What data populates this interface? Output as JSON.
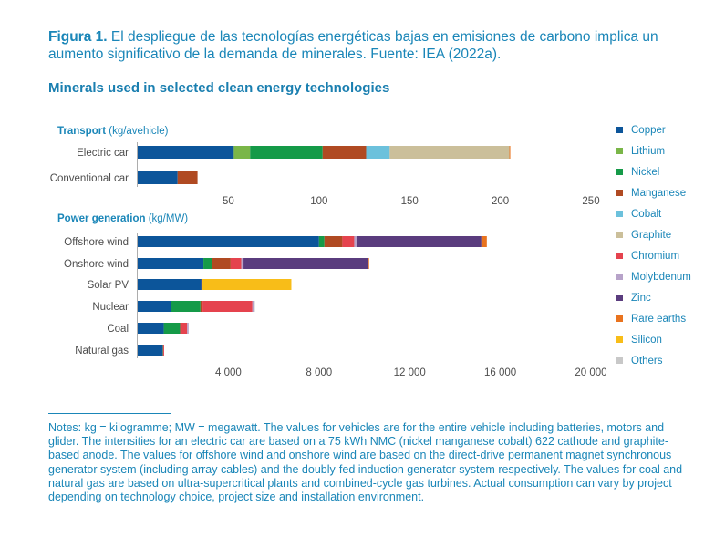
{
  "caption": {
    "label": "Figura 1.",
    "text": "El despliegue de las tecnologías energéticas bajas en emisiones de carbono implica un aumento significativo de la demanda de minerales. Fuente: IEA (2022a)."
  },
  "chart_data": [
    {
      "type": "bar",
      "orientation": "horizontal",
      "stacked": true,
      "title": "Minerals used in selected clean energy technologies",
      "panel_title": "Transport",
      "unit": "(kg/avehicle)",
      "categories": [
        "Electric car",
        "Conventional car"
      ],
      "xlim": [
        0,
        250
      ],
      "xticks": [
        50,
        100,
        150,
        200,
        250
      ],
      "xtick_labels": [
        "50",
        "100",
        "150",
        "200",
        "250"
      ],
      "grid": false,
      "series": [
        {
          "name": "Copper",
          "values": [
            53,
            22
          ]
        },
        {
          "name": "Lithium",
          "values": [
            9,
            0
          ]
        },
        {
          "name": "Nickel",
          "values": [
            40,
            0
          ]
        },
        {
          "name": "Manganese",
          "values": [
            24,
            11
          ]
        },
        {
          "name": "Cobalt",
          "values": [
            13,
            0
          ]
        },
        {
          "name": "Graphite",
          "values": [
            66,
            0
          ]
        },
        {
          "name": "Chromium",
          "values": [
            0,
            0
          ]
        },
        {
          "name": "Molybdenum",
          "values": [
            0,
            0
          ]
        },
        {
          "name": "Zinc",
          "values": [
            0,
            0
          ]
        },
        {
          "name": "Rare earths",
          "values": [
            0.5,
            0
          ]
        },
        {
          "name": "Silicon",
          "values": [
            0,
            0
          ]
        },
        {
          "name": "Others",
          "values": [
            0,
            0
          ]
        }
      ]
    },
    {
      "type": "bar",
      "orientation": "horizontal",
      "stacked": true,
      "panel_title": "Power generation",
      "unit": "(kg/MW)",
      "categories": [
        "Offshore wind",
        "Onshore wind",
        "Solar PV",
        "Nuclear",
        "Coal",
        "Natural gas"
      ],
      "xlim": [
        0,
        20000
      ],
      "xticks": [
        4000,
        8000,
        12000,
        16000,
        20000
      ],
      "xtick_labels": [
        "4 000",
        "8 000",
        "12 000",
        "16 000",
        "20 000"
      ],
      "grid": false,
      "series": [
        {
          "name": "Copper",
          "values": [
            8000,
            2900,
            2800,
            1470,
            1150,
            1100
          ]
        },
        {
          "name": "Lithium",
          "values": [
            0,
            0,
            0,
            0,
            0,
            0
          ]
        },
        {
          "name": "Nickel",
          "values": [
            240,
            400,
            0,
            1300,
            720,
            16
          ]
        },
        {
          "name": "Manganese",
          "values": [
            790,
            800,
            0,
            90,
            0,
            0
          ]
        },
        {
          "name": "Cobalt",
          "values": [
            0,
            0,
            0,
            0,
            0,
            0
          ]
        },
        {
          "name": "Graphite",
          "values": [
            0,
            0,
            0,
            0,
            0,
            0
          ]
        },
        {
          "name": "Chromium",
          "values": [
            525,
            470,
            0,
            2200,
            310,
            48
          ]
        },
        {
          "name": "Molybdenum",
          "values": [
            110,
            100,
            0,
            70,
            66,
            0
          ]
        },
        {
          "name": "Zinc",
          "values": [
            5500,
            5500,
            30,
            0,
            0,
            0
          ]
        },
        {
          "name": "Rare earths",
          "values": [
            240,
            14,
            0,
            0,
            0,
            0
          ]
        },
        {
          "name": "Silicon",
          "values": [
            0,
            0,
            3950,
            0,
            0,
            0
          ]
        },
        {
          "name": "Others",
          "values": [
            0,
            0,
            0,
            35,
            0,
            0
          ]
        }
      ]
    }
  ],
  "legend": [
    {
      "name": "Copper",
      "color": "#0c559a"
    },
    {
      "name": "Lithium",
      "color": "#7ab648"
    },
    {
      "name": "Nickel",
      "color": "#159a48"
    },
    {
      "name": "Manganese",
      "color": "#b04a22"
    },
    {
      "name": "Cobalt",
      "color": "#6cc1dc"
    },
    {
      "name": "Graphite",
      "color": "#cbbf9a"
    },
    {
      "name": "Chromium",
      "color": "#e5434e"
    },
    {
      "name": "Molybdenum",
      "color": "#b7a3c9"
    },
    {
      "name": "Zinc",
      "color": "#5a3c7e"
    },
    {
      "name": "Rare earths",
      "color": "#e9731e"
    },
    {
      "name": "Silicon",
      "color": "#f8bd18"
    },
    {
      "name": "Others",
      "color": "#c8c8c8"
    }
  ],
  "colors": {
    "accent": "#1a86b8",
    "text": "#4d4d4d",
    "axis": "#8a8a8a"
  },
  "notes": "Notes: kg = kilogramme; MW = megawatt. The values for vehicles are for the entire vehicle including batteries, motors and glider. The intensities for an electric car are based on a 75 kWh NMC (nickel manganese cobalt) 622 cathode and graphite-based anode. The values for offshore wind and onshore wind are based on the direct-drive permanent magnet synchronous generator system (including array cables) and the doubly-fed induction generator system respectively. The values for coal and natural gas are based on ultra-supercritical plants and combined-cycle gas turbines. Actual consumption can vary by project depending on technology choice, project size and installation environment."
}
